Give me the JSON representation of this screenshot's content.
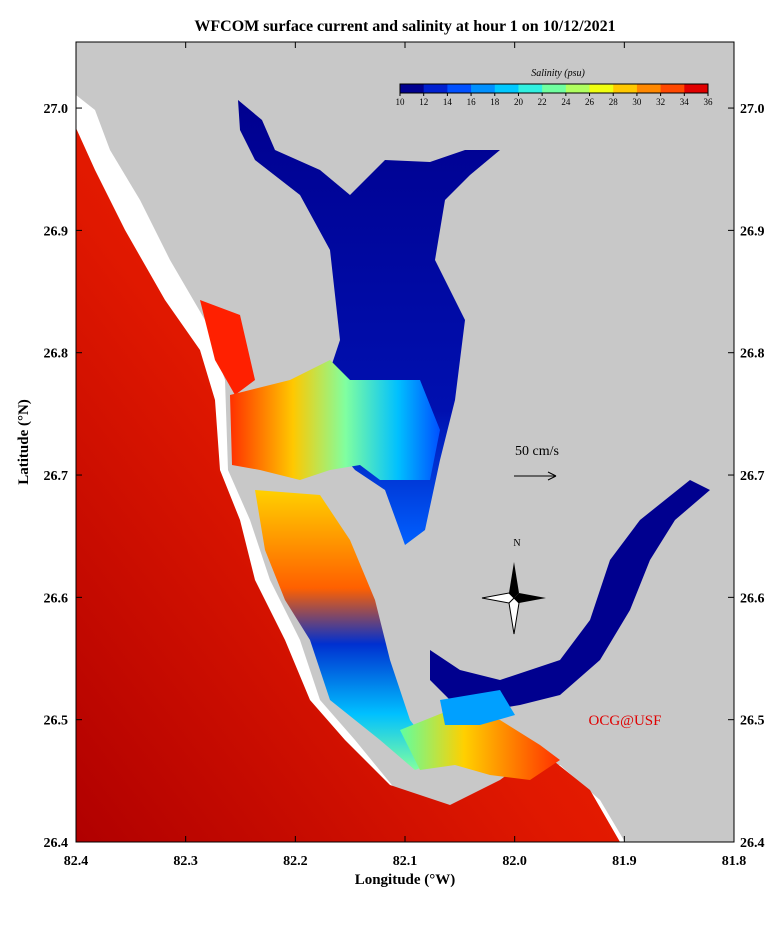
{
  "title": "WFCOM surface current and salinity at hour 1 on 10/12/2021",
  "map": {
    "xlabel": "Longitude (°W)",
    "ylabel": "Latitude (°N)",
    "xlim": [
      82.4,
      81.8
    ],
    "ylim": [
      26.4,
      27.054
    ],
    "xticks": [
      82.4,
      82.3,
      82.2,
      82.1,
      {
        "value": 82,
        "label": "82.0"
      },
      81.9,
      81.8
    ],
    "yticks": [
      26.4,
      26.5,
      26.6,
      26.7,
      26.8,
      26.9,
      {
        "value": 27,
        "label": "27.0"
      }
    ]
  },
  "colorbar": {
    "label": "Salinity (psu)",
    "range": [
      10,
      36
    ],
    "ticks": [
      10,
      12,
      14,
      16,
      18,
      20,
      22,
      24,
      26,
      28,
      30,
      32,
      34,
      36
    ],
    "colors": [
      "#00008f",
      "#0020d0",
      "#0050ff",
      "#0090ff",
      "#00c8ff",
      "#30f0e0",
      "#70ffa0",
      "#b0ff60",
      "#f0ff10",
      "#ffc800",
      "#ff8800",
      "#ff4800",
      "#e00000"
    ]
  },
  "annotations": {
    "scale": "50 cm/s",
    "north": "N",
    "credit": "OCG@USF"
  }
}
